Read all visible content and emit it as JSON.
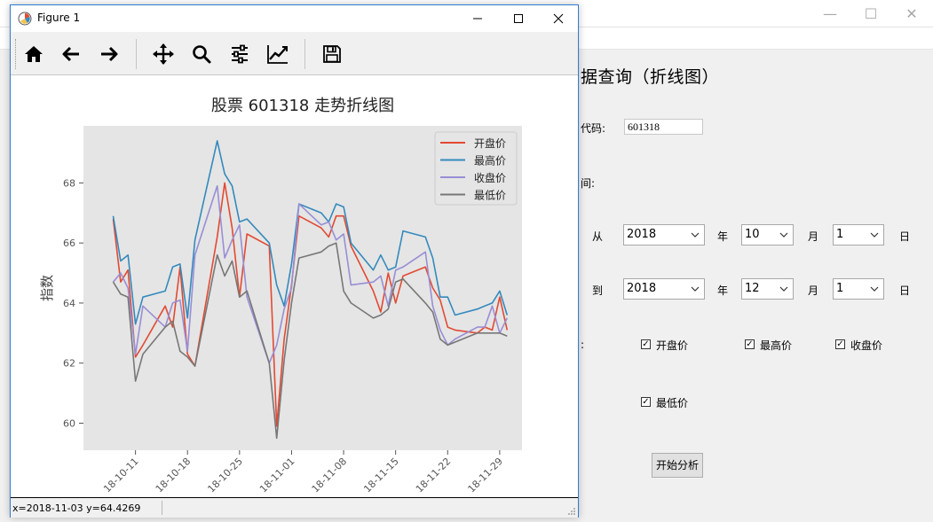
{
  "background_app": {
    "heading": "据查询（折线图）",
    "code_label": "代码:",
    "code_value": "601318",
    "time_label": "间:",
    "from_label": "从",
    "to_label": "到",
    "year_unit": "年",
    "month_unit": "月",
    "day_unit": "日",
    "from": {
      "year": "2018",
      "month": "10",
      "day": "1"
    },
    "to": {
      "year": "2018",
      "month": "12",
      "day": "1"
    },
    "fields_label": ":",
    "checkboxes": [
      {
        "label": "开盘价",
        "checked": true
      },
      {
        "label": "最高价",
        "checked": true
      },
      {
        "label": "收盘价",
        "checked": true
      },
      {
        "label": "最低价",
        "checked": true
      }
    ],
    "start_button": "开始分析",
    "window_controls": {
      "minimize": "—",
      "maximize": "☐",
      "close": "✕"
    }
  },
  "figure_window": {
    "title": "Figure 1",
    "toolbar": [
      "home-icon",
      "back-icon",
      "forward-icon",
      "pan-icon",
      "zoom-icon",
      "configure-subplots-icon",
      "edit-axis-icon",
      "save-icon"
    ],
    "status": "x=2018-11-03 y=64.4269"
  },
  "chart_data": {
    "type": "line",
    "title": "股票 601318 走势折线图",
    "ylabel": "指数",
    "xlabel": "",
    "ylim": [
      59.1,
      69.9
    ],
    "yticks": [
      60,
      62,
      64,
      66,
      68
    ],
    "xticks": [
      "2018-10-11",
      "2018-10-18",
      "2018-10-25",
      "2018-11-01",
      "2018-11-08",
      "2018-11-15",
      "2018-11-22",
      "2018-11-29"
    ],
    "xtick_labels_visible": [
      "18-10-11",
      "18-10-18",
      "18-10-25",
      "18-11-01",
      "18-11-08",
      "18-11-15",
      "18-11-22",
      "18-11-29"
    ],
    "grid": false,
    "background": "#e5e5e5",
    "legend_position": "top-right",
    "x": [
      "2018-10-08",
      "2018-10-09",
      "2018-10-10",
      "2018-10-11",
      "2018-10-12",
      "2018-10-15",
      "2018-10-16",
      "2018-10-17",
      "2018-10-18",
      "2018-10-19",
      "2018-10-22",
      "2018-10-23",
      "2018-10-24",
      "2018-10-25",
      "2018-10-26",
      "2018-10-29",
      "2018-10-30",
      "2018-10-31",
      "2018-11-01",
      "2018-11-02",
      "2018-11-05",
      "2018-11-06",
      "2018-11-07",
      "2018-11-08",
      "2018-11-09",
      "2018-11-12",
      "2018-11-13",
      "2018-11-14",
      "2018-11-15",
      "2018-11-16",
      "2018-11-19",
      "2018-11-20",
      "2018-11-21",
      "2018-11-22",
      "2018-11-23",
      "2018-11-26",
      "2018-11-27",
      "2018-11-28",
      "2018-11-29",
      "2018-11-30"
    ],
    "series": [
      {
        "name": "开盘价",
        "color": "#e24a33",
        "values": [
          66.8,
          64.7,
          65.1,
          62.2,
          62.6,
          63.9,
          63.2,
          65.2,
          62.3,
          61.9,
          66.2,
          68.0,
          66.5,
          64.2,
          66.3,
          65.9,
          59.9,
          62.8,
          64.6,
          66.9,
          66.5,
          66.2,
          66.9,
          66.9,
          65.9,
          64.4,
          63.7,
          65.0,
          64.0,
          64.9,
          65.2,
          64.5,
          64.1,
          63.2,
          63.1,
          63.0,
          63.2,
          63.1,
          64.2,
          63.1
        ]
      },
      {
        "name": "最高价",
        "color": "#348abd",
        "values": [
          66.9,
          65.4,
          65.6,
          63.3,
          64.2,
          64.4,
          65.2,
          65.3,
          63.5,
          66.1,
          69.4,
          68.3,
          67.9,
          66.7,
          66.8,
          66.0,
          64.6,
          63.9,
          65.3,
          67.3,
          67.0,
          66.7,
          67.3,
          67.2,
          66.0,
          65.1,
          65.6,
          65.1,
          65.2,
          66.4,
          66.2,
          65.5,
          64.2,
          64.2,
          63.6,
          63.8,
          63.9,
          64.0,
          64.4,
          63.6
        ]
      },
      {
        "name": "收盘价",
        "color": "#988ed5",
        "values": [
          64.7,
          65.0,
          64.5,
          62.3,
          63.9,
          63.2,
          64.0,
          64.1,
          62.4,
          65.6,
          67.9,
          65.5,
          66.1,
          66.6,
          64.2,
          62.0,
          62.6,
          63.8,
          64.5,
          67.3,
          66.6,
          66.7,
          66.1,
          66.3,
          64.6,
          64.7,
          64.9,
          63.9,
          65.1,
          65.2,
          65.7,
          63.9,
          63.1,
          62.6,
          62.8,
          63.2,
          63.2,
          63.9,
          63.0,
          63.5
        ]
      },
      {
        "name": "最低价",
        "color": "#777777",
        "values": [
          64.7,
          64.3,
          64.2,
          61.4,
          62.3,
          63.2,
          63.4,
          62.4,
          62.2,
          61.9,
          65.6,
          64.9,
          65.4,
          64.2,
          64.4,
          62.0,
          59.5,
          62.1,
          64.0,
          65.5,
          65.7,
          65.9,
          66.0,
          64.4,
          64.0,
          63.5,
          63.6,
          63.8,
          64.7,
          64.8,
          64.0,
          63.7,
          62.8,
          62.6,
          62.7,
          63.0,
          63.0,
          63.0,
          63.0,
          62.9
        ]
      }
    ]
  }
}
